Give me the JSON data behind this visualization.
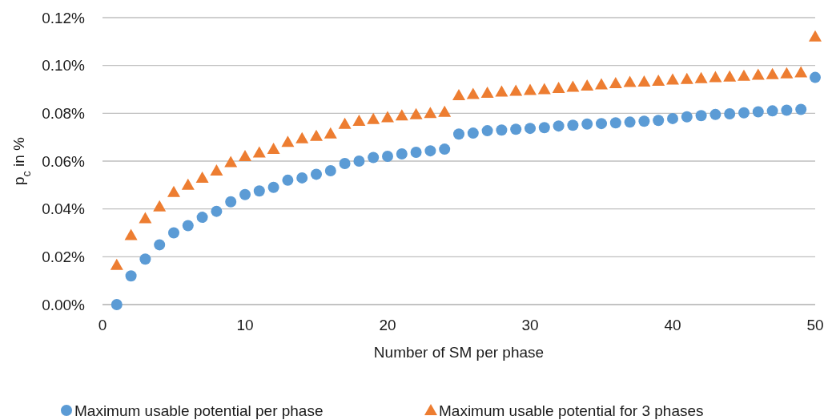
{
  "chart_data": {
    "type": "scatter",
    "xlabel": "Number of SM per phase",
    "ylabel": "p$_{c}$ in %",
    "x": [
      1,
      2,
      3,
      4,
      5,
      6,
      7,
      8,
      9,
      10,
      11,
      12,
      13,
      14,
      15,
      16,
      17,
      18,
      19,
      20,
      21,
      22,
      23,
      24,
      25,
      26,
      27,
      28,
      29,
      30,
      31,
      32,
      33,
      34,
      35,
      36,
      37,
      38,
      39,
      40,
      41,
      42,
      43,
      44,
      45,
      46,
      47,
      48,
      49,
      50
    ],
    "series": [
      {
        "name": "Maximum usable potential per phase",
        "color": "#5b9bd5",
        "marker": "circle",
        "values": [
          0,
          0.012,
          0.019,
          0.025,
          0.03,
          0.033,
          0.0365,
          0.039,
          0.043,
          0.046,
          0.0475,
          0.049,
          0.052,
          0.053,
          0.0545,
          0.056,
          0.059,
          0.06,
          0.0615,
          0.062,
          0.063,
          0.0637,
          0.0643,
          0.065,
          0.0713,
          0.0717,
          0.0727,
          0.073,
          0.0733,
          0.0737,
          0.074,
          0.0747,
          0.075,
          0.0755,
          0.0757,
          0.076,
          0.0763,
          0.0767,
          0.077,
          0.0778,
          0.0785,
          0.079,
          0.0795,
          0.0798,
          0.0802,
          0.0806,
          0.081,
          0.0813,
          0.0816,
          0.095
        ]
      },
      {
        "name": "Maximum usable potential for 3 phases",
        "color": "#ed7d31",
        "marker": "triangle",
        "values": [
          0.0165,
          0.029,
          0.036,
          0.041,
          0.047,
          0.05,
          0.053,
          0.056,
          0.0595,
          0.062,
          0.0635,
          0.065,
          0.068,
          0.0695,
          0.0705,
          0.0715,
          0.0755,
          0.0768,
          0.0775,
          0.0783,
          0.079,
          0.0795,
          0.08,
          0.0805,
          0.0875,
          0.088,
          0.0885,
          0.089,
          0.0893,
          0.0897,
          0.09,
          0.0905,
          0.091,
          0.0915,
          0.092,
          0.0925,
          0.093,
          0.0932,
          0.0935,
          0.094,
          0.0943,
          0.0946,
          0.095,
          0.0953,
          0.0956,
          0.096,
          0.0963,
          0.0966,
          0.097,
          0.112
        ]
      }
    ],
    "xlim": [
      0,
      50
    ],
    "xticks": [
      0,
      10,
      20,
      30,
      40,
      50
    ],
    "ylim": [
      0,
      0.12
    ],
    "yticks": [
      {
        "value": 0,
        "label": "0.00%"
      },
      {
        "value": 0.02,
        "label": "0.02%"
      },
      {
        "value": 0.04,
        "label": "0.04%"
      },
      {
        "value": 0.06,
        "label": "0.06%"
      },
      {
        "value": 0.08,
        "label": "0.08%"
      },
      {
        "value": 0.1,
        "label": "0.10%"
      },
      {
        "value": 0.12,
        "label": "0.12%"
      }
    ],
    "grid": "y",
    "legend": "bottom"
  }
}
